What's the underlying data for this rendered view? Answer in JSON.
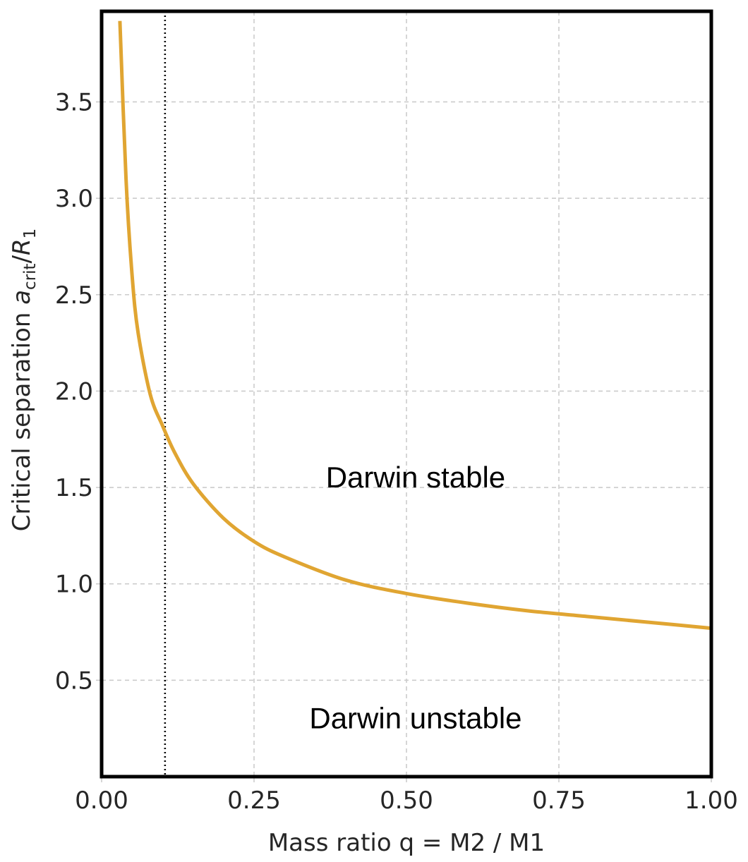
{
  "chart_data": {
    "type": "line",
    "xlabel": "Mass ratio q = M2 / M1",
    "ylabel": {
      "prefix": "Critical separation ",
      "a": "a",
      "sub": "crit",
      "slash": "/",
      "R": "R",
      "rsub": "1"
    },
    "xlim": [
      0.0,
      1.0
    ],
    "ylim": [
      0.0,
      3.97
    ],
    "xticks": [
      "0.00",
      "0.25",
      "0.50",
      "0.75",
      "1.00"
    ],
    "yticks": [
      "0.5",
      "1.0",
      "1.5",
      "2.0",
      "2.5",
      "3.0",
      "3.5"
    ],
    "grid": true,
    "series": [
      {
        "color": "#e0a532",
        "x": [
          0.03,
          0.04,
          0.05,
          0.06,
          0.08,
          0.1,
          0.12,
          0.15,
          0.2,
          0.25,
          0.3,
          0.4,
          0.5,
          0.6,
          0.7,
          0.8,
          0.9,
          1.0
        ],
        "y": [
          3.92,
          3.1,
          2.6,
          2.3,
          1.98,
          1.82,
          1.68,
          1.52,
          1.34,
          1.22,
          1.14,
          1.02,
          0.95,
          0.9,
          0.86,
          0.83,
          0.8,
          0.77
        ]
      }
    ],
    "vline": {
      "x": 0.104,
      "style": "dotted",
      "color": "#000000"
    },
    "annotations": [
      {
        "text": "Darwin stable",
        "x": 0.515,
        "y": 1.5
      },
      {
        "text": "Darwin unstable",
        "x": 0.515,
        "y": 0.25
      }
    ]
  }
}
